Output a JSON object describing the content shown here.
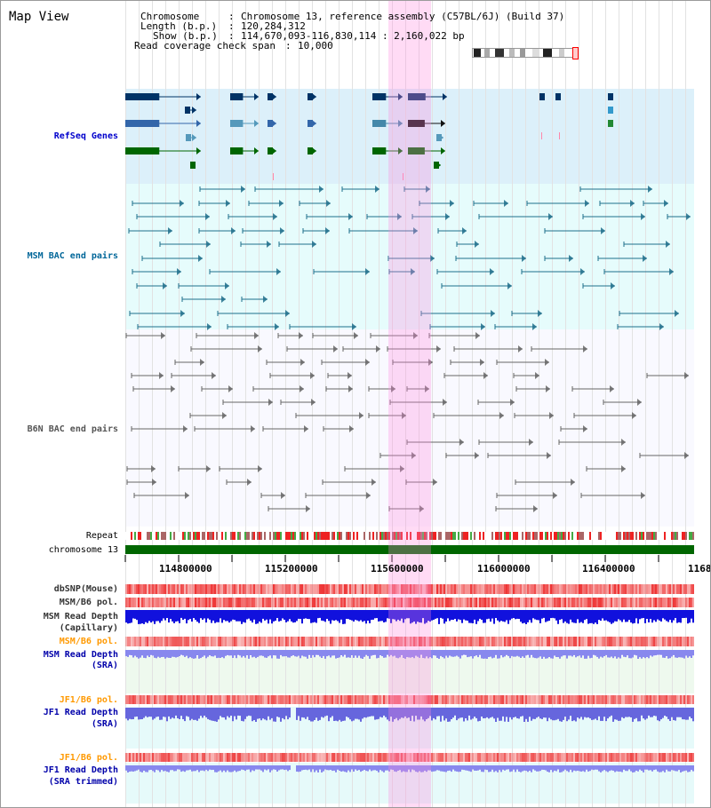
{
  "title": "Map View",
  "header": {
    "chromosome_label": "Chromosome",
    "chromosome_value": "Chromosome 13, reference assembly (C57BL/6J) (Build 37)",
    "length_label": "Length (b.p.)",
    "length_value": "120,284,312",
    "show_label": "Show (b.p.)",
    "show_value": "114,670,093-116,830,114 : 2,160,022 bp",
    "coverage_label": "Read coverage check span",
    "coverage_value": "10,000"
  },
  "tracks": {
    "refseq": "RefSeq Genes",
    "msm_bac": "MSM BAC end pairs",
    "b6n_bac": "B6N BAC end pairs",
    "repeat": "Repeat",
    "chromosome": "chromosome 13",
    "dbsnp": "dbSNP(Mouse)",
    "msm_b6_pol_1": "MSM/B6 pol.",
    "msm_depth_cap_1": "MSM Read Depth",
    "msm_depth_cap_2": "(Capillary)",
    "msm_b6_pol_2": "MSM/B6 pol.",
    "msm_depth_sra_1": "MSM Read Depth",
    "msm_depth_sra_2": "(SRA)",
    "jf1_b6_pol_1": "JF1/B6 pol.",
    "jf1_depth_sra_1": "JF1 Read Depth",
    "jf1_depth_sra_2": "(SRA)",
    "jf1_b6_pol_2": "JF1/B6 pol.",
    "jf1_depth_trim_1": "JF1 Read Depth",
    "jf1_depth_trim_2": "(SRA trimmed)"
  },
  "axis": {
    "ticks": [
      "114800000",
      "115200000",
      "115600000",
      "116000000",
      "116400000",
      "1168"
    ]
  },
  "colors": {
    "refseq_label": "#0000cc",
    "msm_label": "#006699",
    "b6n_label": "#555555",
    "pol_label": "#ff9900",
    "depth_label": "#0000aa",
    "highlight": "#ff88dd",
    "chromosome_bar": "#006600"
  }
}
